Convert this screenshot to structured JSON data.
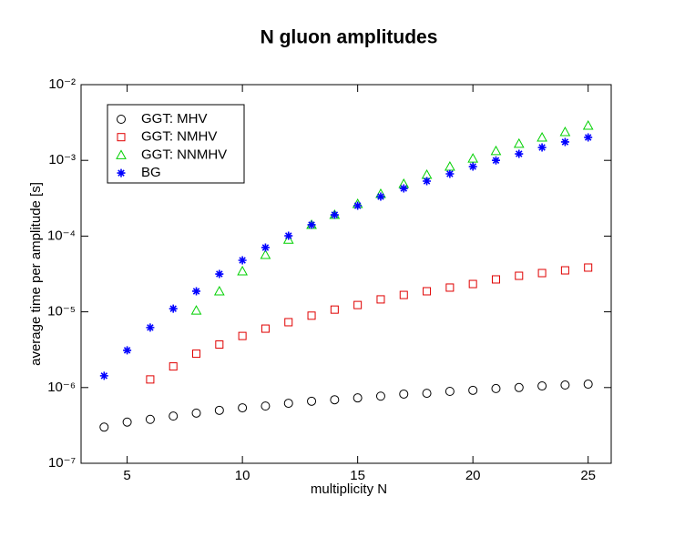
{
  "chart_data": {
    "type": "scatter",
    "title": "N gluon amplitudes",
    "x_label": "multiplicity N",
    "y_label": "average time per amplitude [s]",
    "xlim": [
      3,
      26
    ],
    "xticks": [
      5,
      10,
      15,
      20,
      25
    ],
    "ylim": [
      1e-07,
      0.01
    ],
    "log_y": true,
    "yticks": [
      {
        "value": 1e-07,
        "label": "10⁻⁷"
      },
      {
        "value": 1e-06,
        "label": "10⁻⁶"
      },
      {
        "value": 1e-05,
        "label": "10⁻⁵"
      },
      {
        "value": 0.0001,
        "label": "10⁻⁴"
      },
      {
        "value": 0.001,
        "label": "10⁻³"
      },
      {
        "value": 0.01,
        "label": "10⁻²"
      }
    ],
    "legend": "upper left",
    "series": [
      {
        "name": "GGT: MHV",
        "color": "#000000",
        "marker": "circle",
        "x": [
          4,
          5,
          6,
          7,
          8,
          9,
          10,
          11,
          12,
          13,
          14,
          15,
          16,
          17,
          18,
          19,
          20,
          21,
          22,
          23,
          24,
          25
        ],
        "values": [
          3e-07,
          3.5e-07,
          3.8e-07,
          4.2e-07,
          4.6e-07,
          5e-07,
          5.4e-07,
          5.7e-07,
          6.2e-07,
          6.6e-07,
          6.9e-07,
          7.3e-07,
          7.7e-07,
          8.2e-07,
          8.4e-07,
          8.9e-07,
          9.2e-07,
          9.7e-07,
          1e-06,
          1.05e-06,
          1.08e-06,
          1.11e-06
        ]
      },
      {
        "name": "GGT: NMHV",
        "color": "#e00000",
        "marker": "square",
        "x": [
          6,
          7,
          8,
          9,
          10,
          11,
          12,
          13,
          14,
          15,
          16,
          17,
          18,
          19,
          20,
          21,
          22,
          23,
          24,
          25
        ],
        "values": [
          1.28e-06,
          1.9e-06,
          2.8e-06,
          3.7e-06,
          4.8e-06,
          6e-06,
          7.3e-06,
          8.9e-06,
          1.07e-05,
          1.23e-05,
          1.46e-05,
          1.67e-05,
          1.87e-05,
          2.09e-05,
          2.33e-05,
          2.68e-05,
          2.99e-05,
          3.25e-05,
          3.53e-05,
          3.84e-05
        ]
      },
      {
        "name": "GGT: NNMHV",
        "color": "#00d000",
        "marker": "triangle",
        "x": [
          8,
          9,
          10,
          11,
          12,
          13,
          14,
          15,
          16,
          17,
          18,
          19,
          20,
          21,
          22,
          23,
          24,
          25
        ],
        "values": [
          1.04e-05,
          1.87e-05,
          3.44e-05,
          5.65e-05,
          9e-05,
          0.000141,
          0.000191,
          0.000266,
          0.000361,
          0.00049,
          0.000646,
          0.000828,
          0.00106,
          0.00133,
          0.00166,
          0.00201,
          0.00237,
          0.00288
        ]
      },
      {
        "name": "BG",
        "color": "#0000ff",
        "marker": "star",
        "x": [
          4,
          5,
          6,
          7,
          8,
          9,
          10,
          11,
          12,
          13,
          14,
          15,
          16,
          17,
          18,
          19,
          20,
          21,
          22,
          23,
          24,
          25
        ],
        "values": [
          1.43e-06,
          3.1e-06,
          6.2e-06,
          1.1e-05,
          1.87e-05,
          3.16e-05,
          4.79e-05,
          7.06e-05,
          0.000101,
          0.000141,
          0.000191,
          0.000252,
          0.000332,
          0.000426,
          0.000532,
          0.000664,
          0.000828,
          0.001,
          0.00122,
          0.00148,
          0.00175,
          0.00201
        ]
      }
    ]
  }
}
